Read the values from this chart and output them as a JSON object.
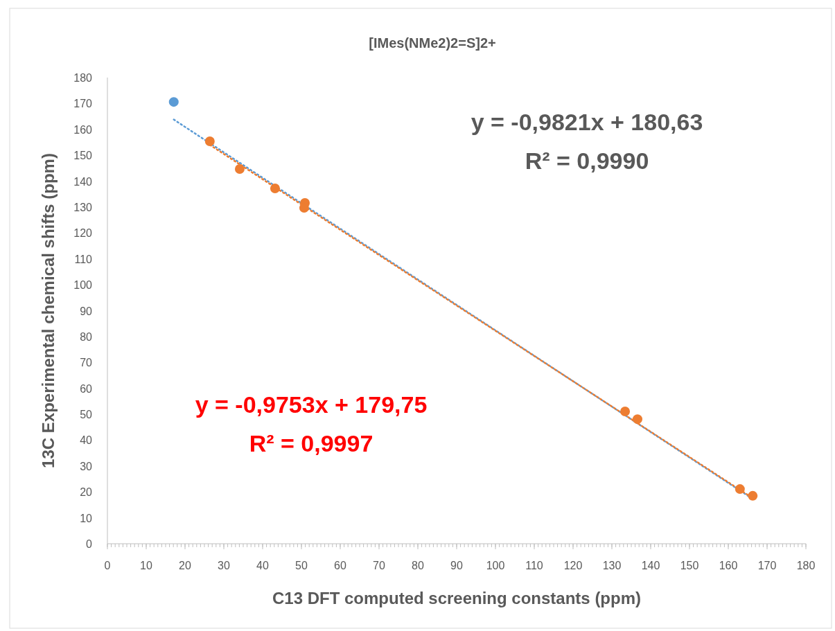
{
  "chart_data": {
    "type": "scatter",
    "title": "[IMes(NMe2)2=S]2+",
    "xlabel": "C13 DFT computed screening constants (ppm)",
    "ylabel": "13C Experimental chemical shifts (ppm)",
    "xlim": [
      0,
      180
    ],
    "xticks": [
      0,
      10,
      20,
      30,
      40,
      50,
      60,
      70,
      80,
      90,
      100,
      110,
      120,
      130,
      140,
      150,
      160,
      170,
      180
    ],
    "ylim": [
      0,
      180
    ],
    "yticks": [
      0,
      10,
      20,
      30,
      40,
      50,
      60,
      70,
      80,
      90,
      100,
      110,
      120,
      130,
      140,
      150,
      160,
      170,
      180
    ],
    "grid": false,
    "series": [
      {
        "type": "scatter",
        "color": "#5b9bd5",
        "marker": "circle",
        "x": [
          17.1
        ],
        "values": [
          170.6
        ]
      },
      {
        "type": "line",
        "color": "#5b9bd5",
        "line_style": "dotted",
        "x": [
          17.1,
          166.3
        ],
        "values": [
          163.8,
          17.3
        ]
      },
      {
        "type": "scatter",
        "color": "#ed7d31",
        "marker": "circle",
        "x": [
          26.4,
          34.1,
          43.2,
          50.9,
          50.7,
          133.4,
          136.6,
          163,
          166.3
        ],
        "values": [
          155.4,
          144.7,
          137.2,
          131.6,
          129.7,
          51.1,
          48.1,
          21.1,
          18.5
        ]
      },
      {
        "type": "line",
        "color": "#ed7d31",
        "line_style": "dotted",
        "x": [
          26.4,
          166.3
        ],
        "values": [
          154.0,
          17.6
        ]
      }
    ],
    "annotations": [
      "y = -0,9821x + 180,63\nR² = 0,9990",
      "y = -0,9753x + 179,75\nR² = 0,9997"
    ]
  }
}
